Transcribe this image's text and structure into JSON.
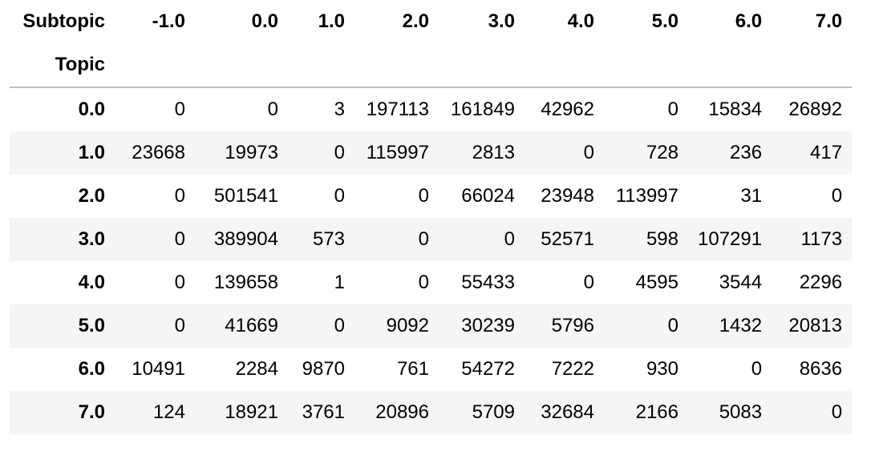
{
  "table": {
    "columns_name": "Subtopic",
    "index_name": "Topic",
    "columns": [
      "-1.0",
      "0.0",
      "1.0",
      "2.0",
      "3.0",
      "4.0",
      "5.0",
      "6.0",
      "7.0"
    ],
    "rows": [
      {
        "index": "0.0",
        "values": [
          "0",
          "0",
          "3",
          "197113",
          "161849",
          "42962",
          "0",
          "15834",
          "26892"
        ]
      },
      {
        "index": "1.0",
        "values": [
          "23668",
          "19973",
          "0",
          "115997",
          "2813",
          "0",
          "728",
          "236",
          "417"
        ]
      },
      {
        "index": "2.0",
        "values": [
          "0",
          "501541",
          "0",
          "0",
          "66024",
          "23948",
          "113997",
          "31",
          "0"
        ]
      },
      {
        "index": "3.0",
        "values": [
          "0",
          "389904",
          "573",
          "0",
          "0",
          "52571",
          "598",
          "107291",
          "1173"
        ]
      },
      {
        "index": "4.0",
        "values": [
          "0",
          "139658",
          "1",
          "0",
          "55433",
          "0",
          "4595",
          "3544",
          "2296"
        ]
      },
      {
        "index": "5.0",
        "values": [
          "0",
          "41669",
          "0",
          "9092",
          "30239",
          "5796",
          "0",
          "1432",
          "20813"
        ]
      },
      {
        "index": "6.0",
        "values": [
          "10491",
          "2284",
          "9870",
          "761",
          "54272",
          "7222",
          "930",
          "0",
          "8636"
        ]
      },
      {
        "index": "7.0",
        "values": [
          "124",
          "18921",
          "3761",
          "20896",
          "5709",
          "32684",
          "2166",
          "5083",
          "0"
        ]
      }
    ]
  }
}
